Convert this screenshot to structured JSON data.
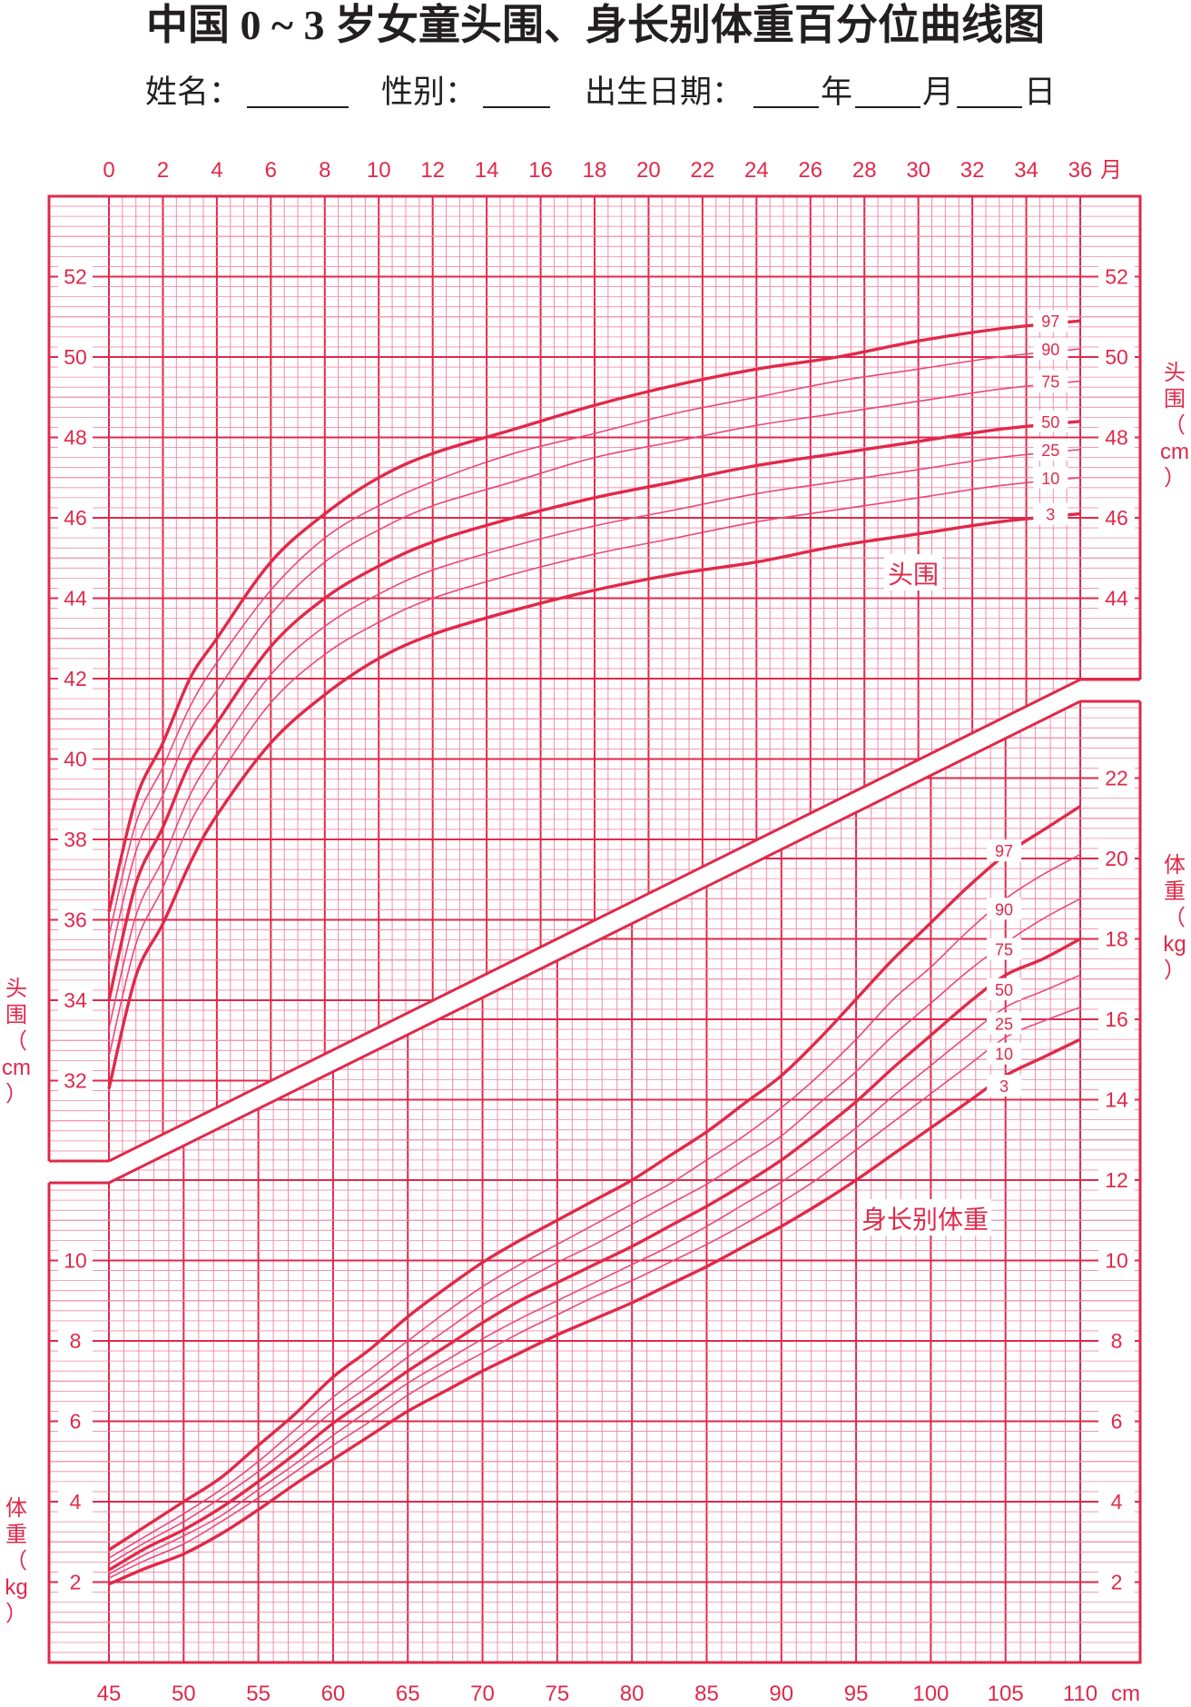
{
  "title": "中国 0 ~ 3 岁女童头围、身长别体重百分位曲线图",
  "form": {
    "name_label": "姓名：",
    "sex_label": "性别：",
    "birth_label": "出生日期：",
    "year_label": "年",
    "month_label": "月",
    "day_label": "日"
  },
  "colors": {
    "primary": "#e0294a",
    "grid_fine": "#f08ca6",
    "text": "#231f20",
    "curve_thin": "#e8487a"
  },
  "chart_data": [
    {
      "type": "line",
      "title": "头围",
      "xlabel": "月",
      "ylabel": "头围（cm）",
      "x_ticks": [
        0,
        2,
        4,
        6,
        8,
        10,
        12,
        14,
        16,
        18,
        20,
        22,
        24,
        26,
        28,
        30,
        32,
        34,
        36
      ],
      "x_tick_labels": [
        "0",
        "2",
        "4",
        "6",
        "8",
        "10",
        "12",
        "14",
        "16",
        "18",
        "20",
        "22",
        "24",
        "26",
        "28",
        "30",
        "32",
        "34",
        "36"
      ],
      "x_unit_label": "月",
      "xlim": [
        0,
        36
      ],
      "y_ticks": [
        32,
        34,
        36,
        38,
        40,
        42,
        44,
        46,
        48,
        50,
        52
      ],
      "y_ticks_right": [
        44,
        46,
        48,
        50,
        52
      ],
      "ylim": [
        30,
        54
      ],
      "grid": true,
      "x": [
        0,
        1,
        2,
        3,
        4,
        6,
        8,
        10,
        12,
        15,
        18,
        21,
        24,
        27,
        30,
        33,
        36
      ],
      "series": [
        {
          "name": "97",
          "values": [
            36.2,
            39.0,
            40.4,
            42.0,
            43.0,
            44.9,
            46.1,
            47.0,
            47.6,
            48.2,
            48.8,
            49.3,
            49.7,
            50.0,
            50.4,
            50.7,
            50.9
          ]
        },
        {
          "name": "90",
          "values": [
            35.6,
            38.4,
            39.8,
            41.3,
            42.4,
            44.2,
            45.5,
            46.3,
            46.9,
            47.6,
            48.1,
            48.6,
            49.0,
            49.4,
            49.7,
            50.0,
            50.2
          ]
        },
        {
          "name": "75",
          "values": [
            34.9,
            37.7,
            39.1,
            40.7,
            41.7,
            43.6,
            44.9,
            45.7,
            46.3,
            46.9,
            47.5,
            47.9,
            48.3,
            48.6,
            48.9,
            49.2,
            49.4
          ]
        },
        {
          "name": "50",
          "values": [
            34.0,
            36.9,
            38.3,
            39.9,
            40.9,
            42.8,
            44.0,
            44.8,
            45.4,
            46.0,
            46.5,
            46.9,
            47.3,
            47.6,
            47.9,
            48.2,
            48.4
          ]
        },
        {
          "name": "25",
          "values": [
            33.3,
            36.1,
            37.5,
            39.1,
            40.2,
            42.1,
            43.3,
            44.1,
            44.7,
            45.3,
            45.8,
            46.2,
            46.6,
            46.9,
            47.2,
            47.5,
            47.7
          ]
        },
        {
          "name": "10",
          "values": [
            32.6,
            35.4,
            36.8,
            38.4,
            39.5,
            41.4,
            42.6,
            43.4,
            44.0,
            44.6,
            45.1,
            45.5,
            45.9,
            46.2,
            46.5,
            46.8,
            47.0
          ]
        },
        {
          "name": "3",
          "values": [
            31.8,
            34.6,
            35.9,
            37.4,
            38.6,
            40.4,
            41.6,
            42.5,
            43.1,
            43.7,
            44.2,
            44.6,
            44.9,
            45.3,
            45.6,
            45.9,
            46.1
          ]
        }
      ]
    },
    {
      "type": "line",
      "title": "身长别体重",
      "xlabel": "cm",
      "ylabel": "体重（kg）",
      "x_ticks": [
        45,
        50,
        55,
        60,
        65,
        70,
        75,
        80,
        85,
        90,
        95,
        100,
        105,
        110
      ],
      "x_tick_labels": [
        "45",
        "50",
        "55",
        "60",
        "65",
        "70",
        "75",
        "80",
        "85",
        "90",
        "95",
        "100",
        "105",
        "110"
      ],
      "x_unit_label": "cm",
      "xlim": [
        45,
        110
      ],
      "y_ticks": [
        2,
        4,
        6,
        8,
        10,
        12,
        14,
        16,
        18,
        20,
        22
      ],
      "y_ticks_left": [
        2,
        4,
        6,
        8,
        10
      ],
      "ylim": [
        0,
        24
      ],
      "grid": true,
      "x": [
        45,
        47.5,
        50,
        52.5,
        55,
        57.5,
        60,
        62.5,
        65,
        67.5,
        70,
        72.5,
        75,
        77.5,
        80,
        82.5,
        85,
        87.5,
        90,
        92.5,
        95,
        97.5,
        100,
        102.5,
        105,
        107.5,
        110
      ],
      "series": [
        {
          "name": "97",
          "values": [
            2.8,
            3.4,
            4.0,
            4.6,
            5.4,
            6.2,
            7.1,
            7.8,
            8.6,
            9.3,
            9.95,
            10.5,
            11.0,
            11.5,
            12.0,
            12.6,
            13.2,
            13.9,
            14.6,
            15.5,
            16.5,
            17.5,
            18.4,
            19.3,
            20.1,
            20.7,
            21.3
          ]
        },
        {
          "name": "90",
          "values": [
            2.6,
            3.15,
            3.7,
            4.3,
            5.0,
            5.8,
            6.6,
            7.3,
            8.0,
            8.7,
            9.35,
            9.9,
            10.4,
            10.9,
            11.4,
            11.9,
            12.5,
            13.1,
            13.8,
            14.6,
            15.5,
            16.5,
            17.3,
            18.2,
            19.0,
            19.6,
            20.1
          ]
        },
        {
          "name": "75",
          "values": [
            2.45,
            3.0,
            3.5,
            4.1,
            4.75,
            5.5,
            6.25,
            6.9,
            7.6,
            8.25,
            8.9,
            9.45,
            9.95,
            10.4,
            10.9,
            11.4,
            11.9,
            12.5,
            13.1,
            13.9,
            14.7,
            15.6,
            16.4,
            17.2,
            17.9,
            18.5,
            19.0
          ]
        },
        {
          "name": "50",
          "values": [
            2.3,
            2.85,
            3.3,
            3.85,
            4.5,
            5.2,
            5.95,
            6.6,
            7.25,
            7.85,
            8.45,
            9.0,
            9.45,
            9.9,
            10.35,
            10.85,
            11.35,
            11.9,
            12.5,
            13.2,
            13.95,
            14.8,
            15.6,
            16.4,
            17.1,
            17.5,
            18.0
          ]
        },
        {
          "name": "25",
          "values": [
            2.2,
            2.7,
            3.15,
            3.65,
            4.3,
            4.95,
            5.65,
            6.3,
            6.95,
            7.5,
            8.05,
            8.55,
            9.0,
            9.45,
            9.9,
            10.35,
            10.85,
            11.4,
            11.95,
            12.6,
            13.3,
            14.1,
            14.85,
            15.6,
            16.3,
            16.7,
            17.1
          ]
        },
        {
          "name": "10",
          "values": [
            2.1,
            2.55,
            2.95,
            3.5,
            4.1,
            4.75,
            5.4,
            6.0,
            6.65,
            7.2,
            7.7,
            8.2,
            8.65,
            9.1,
            9.5,
            9.95,
            10.4,
            10.9,
            11.45,
            12.05,
            12.75,
            13.45,
            14.15,
            14.85,
            15.55,
            15.95,
            16.3
          ]
        },
        {
          "name": "3",
          "values": [
            1.95,
            2.35,
            2.7,
            3.2,
            3.8,
            4.45,
            5.05,
            5.65,
            6.25,
            6.75,
            7.25,
            7.7,
            8.15,
            8.55,
            8.95,
            9.4,
            9.85,
            10.35,
            10.85,
            11.4,
            12.0,
            12.65,
            13.3,
            13.95,
            14.6,
            15.05,
            15.5
          ]
        }
      ]
    }
  ]
}
